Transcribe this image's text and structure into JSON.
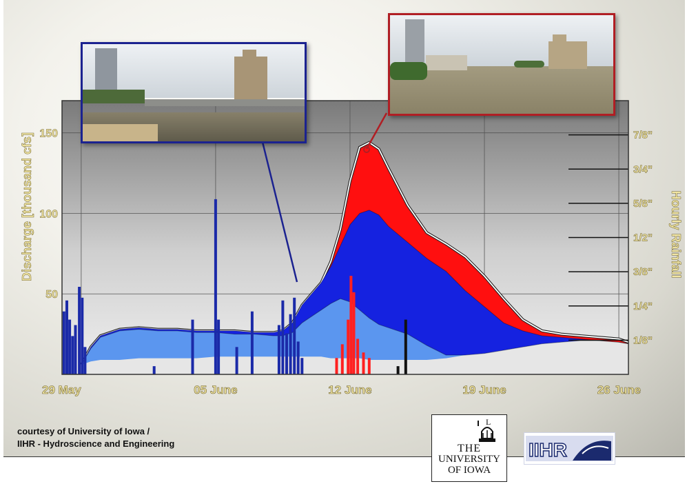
{
  "chart_data": {
    "type": "area",
    "title": "",
    "ylabel": "Discharge [thousand cfs]",
    "y2label": "Hourly Rainfall",
    "ylim": [
      0,
      170
    ],
    "y_ticks": [
      "50",
      "100",
      "150"
    ],
    "y_tick_values": [
      50,
      100,
      150
    ],
    "y2lim": [
      0,
      1
    ],
    "y2_ticks": [
      "1/8\"",
      "1/4\"",
      "3/8\"",
      "1/2\"",
      "5/8\"",
      "3/4\"",
      "7/8\""
    ],
    "y2_tick_values": [
      0.125,
      0.25,
      0.375,
      0.5,
      0.625,
      0.75,
      0.875
    ],
    "x_ticks": [
      "29 May",
      "05 June",
      "12 June",
      "19 June",
      "26 June"
    ],
    "x_tick_values": [
      0,
      7,
      14,
      21,
      28
    ],
    "x_range": [
      -1,
      28.5
    ],
    "grid": true,
    "series": [
      {
        "color": "#ff0f0f",
        "x": [
          0,
          0.5,
          1,
          2,
          3,
          4,
          5,
          6,
          7,
          8,
          9,
          10,
          10.5,
          11,
          11.5,
          12,
          12.5,
          13,
          13.5,
          14,
          14.5,
          15,
          15.5,
          16,
          17,
          18,
          19,
          20,
          21,
          22,
          23,
          24,
          25,
          26,
          27,
          28,
          28.5
        ],
        "values": [
          6,
          17,
          24,
          28,
          29,
          28,
          28,
          27,
          27,
          27,
          26,
          26,
          27,
          32,
          43,
          50,
          57,
          70,
          90,
          120,
          141,
          144,
          140,
          128,
          105,
          88,
          81,
          73,
          61,
          47,
          34,
          27,
          25,
          24,
          23,
          22,
          20
        ]
      },
      {
        "color": "#1522e0",
        "x": [
          0,
          0.5,
          1,
          2,
          3,
          4,
          5,
          6,
          7,
          8,
          9,
          10,
          10.5,
          11,
          11.5,
          12,
          12.5,
          13,
          13.5,
          14,
          14.5,
          15,
          15.5,
          16,
          17,
          18,
          19,
          20,
          21,
          22,
          23,
          24,
          25,
          26,
          27,
          28,
          28.5
        ],
        "values": [
          6,
          17,
          24,
          28,
          29,
          28,
          28,
          27,
          27,
          27,
          26,
          26,
          27,
          32,
          43,
          50,
          57,
          67,
          80,
          93,
          100,
          102,
          99,
          92,
          82,
          72,
          64,
          52,
          42,
          32,
          27,
          24,
          23,
          22,
          21,
          20,
          19
        ]
      },
      {
        "color": "#5b96ef",
        "x": [
          0,
          0.5,
          1,
          2,
          3,
          4,
          5,
          6,
          7,
          8,
          9,
          10,
          10.5,
          11,
          11.5,
          12,
          12.5,
          13,
          13.5,
          14,
          14.5,
          15,
          15.5,
          16,
          17,
          18,
          19,
          20,
          21,
          22,
          23,
          24,
          25,
          26,
          27,
          28,
          28.5
        ],
        "values": [
          6,
          16,
          23,
          27,
          28,
          27,
          27,
          26,
          26,
          25,
          25,
          24,
          24,
          26,
          32,
          36,
          40,
          44,
          47,
          45,
          40,
          35,
          31,
          29,
          25,
          18,
          12,
          12,
          13,
          15,
          17,
          19,
          20,
          21,
          21,
          20,
          19
        ]
      },
      {
        "color": "#e6e6e6",
        "x": [
          0,
          0.5,
          1,
          2,
          3,
          4,
          5,
          6,
          7,
          8,
          9,
          10,
          10.5,
          11,
          11.5,
          12,
          12.5,
          13,
          13.5,
          14,
          14.5,
          15,
          15.5,
          16,
          17,
          18,
          19,
          20,
          21,
          22,
          23,
          24,
          25,
          26,
          27,
          28,
          28.5
        ],
        "values": [
          6,
          8,
          9,
          9,
          10,
          10,
          10,
          10,
          11,
          11,
          11,
          11,
          11,
          11,
          11,
          11,
          11,
          10,
          10,
          10,
          10,
          9,
          9,
          9,
          9,
          9,
          10,
          12,
          13,
          15,
          17,
          19,
          20,
          21,
          21,
          20,
          19
        ]
      }
    ],
    "rainfall_bars": [
      {
        "x": -0.9,
        "v": 0.23,
        "color": "#1b2aa8"
      },
      {
        "x": -0.75,
        "v": 0.27,
        "color": "#1b2aa8"
      },
      {
        "x": -0.6,
        "v": 0.2,
        "color": "#1b2aa8"
      },
      {
        "x": -0.45,
        "v": 0.14,
        "color": "#1b2aa8"
      },
      {
        "x": -0.3,
        "v": 0.18,
        "color": "#1b2aa8"
      },
      {
        "x": -0.1,
        "v": 0.32,
        "color": "#1b2aa8"
      },
      {
        "x": 0.05,
        "v": 0.28,
        "color": "#1b2aa8"
      },
      {
        "x": 0.2,
        "v": 0.1,
        "color": "#1b2aa8"
      },
      {
        "x": 3.8,
        "v": 0.03,
        "color": "#1b2aa8"
      },
      {
        "x": 5.8,
        "v": 0.2,
        "color": "#1b2aa8"
      },
      {
        "x": 7.0,
        "v": 0.64,
        "color": "#1b2aa8"
      },
      {
        "x": 7.15,
        "v": 0.2,
        "color": "#1b2aa8"
      },
      {
        "x": 8.1,
        "v": 0.1,
        "color": "#1b2aa8"
      },
      {
        "x": 8.9,
        "v": 0.23,
        "color": "#1b2aa8"
      },
      {
        "x": 10.3,
        "v": 0.18,
        "color": "#1b2aa8"
      },
      {
        "x": 10.5,
        "v": 0.27,
        "color": "#1b2aa8"
      },
      {
        "x": 10.7,
        "v": 0.15,
        "color": "#1b2aa8"
      },
      {
        "x": 10.9,
        "v": 0.22,
        "color": "#1b2aa8"
      },
      {
        "x": 11.1,
        "v": 0.28,
        "color": "#1b2aa8"
      },
      {
        "x": 11.3,
        "v": 0.12,
        "color": "#1b2aa8"
      },
      {
        "x": 11.5,
        "v": 0.06,
        "color": "#1b2aa8"
      },
      {
        "x": 13.3,
        "v": 0.06,
        "color": "#ff2020"
      },
      {
        "x": 13.6,
        "v": 0.11,
        "color": "#ff2020"
      },
      {
        "x": 13.9,
        "v": 0.2,
        "color": "#ff2020"
      },
      {
        "x": 14.05,
        "v": 0.36,
        "color": "#ff2020"
      },
      {
        "x": 14.2,
        "v": 0.3,
        "color": "#ff2020"
      },
      {
        "x": 14.4,
        "v": 0.13,
        "color": "#ff2020"
      },
      {
        "x": 14.7,
        "v": 0.08,
        "color": "#ff2020"
      },
      {
        "x": 15.0,
        "v": 0.06,
        "color": "#ff2020"
      },
      {
        "x": 16.9,
        "v": 0.2,
        "color": "#111111"
      },
      {
        "x": 16.5,
        "v": 0.03,
        "color": "#111111"
      }
    ]
  },
  "credit": {
    "line1": "courtesy of University of Iowa /",
    "line2": "IIHR - Hydroscience and Engineering"
  },
  "logo_university": {
    "line1": "THE",
    "line2": "UNIVERSITY",
    "line3": "OF IOWA"
  },
  "logo_iihr": {
    "text": "IIHR"
  }
}
